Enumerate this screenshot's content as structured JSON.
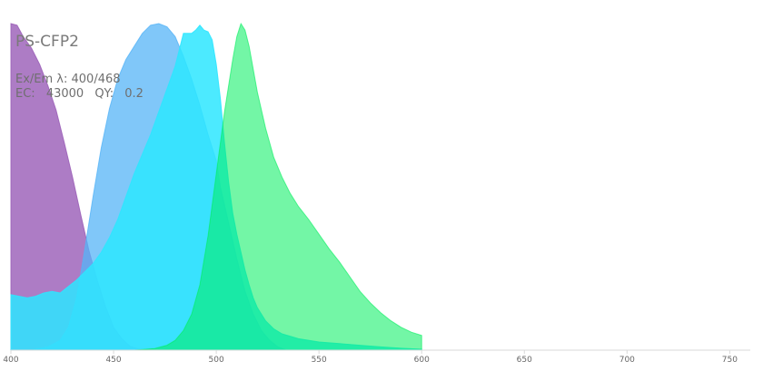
{
  "chart_data": {
    "type": "area",
    "title": "PS-CFP2",
    "info": {
      "exem_label": "Ex/Em λ:",
      "exem_value": "400/468",
      "ec_label": "EC:",
      "ec_value": "43000",
      "qy_label": "QY:",
      "qy_value": "0.2"
    },
    "xlim": [
      400,
      760
    ],
    "ylim": [
      0,
      1
    ],
    "x_ticks": [
      400,
      450,
      500,
      550,
      600,
      650,
      700,
      750
    ],
    "x_tick_labels": [
      "400",
      "450",
      "500",
      "550",
      "600",
      "650",
      "700",
      "750"
    ],
    "grid": false,
    "series": [
      {
        "color": "#9b5fb8",
        "opacity": 0.82,
        "points": [
          [
            400,
            1.0
          ],
          [
            403,
            0.995
          ],
          [
            406,
            0.96
          ],
          [
            410,
            0.925
          ],
          [
            414,
            0.875
          ],
          [
            418,
            0.81
          ],
          [
            422,
            0.735
          ],
          [
            426,
            0.635
          ],
          [
            430,
            0.53
          ],
          [
            434,
            0.415
          ],
          [
            438,
            0.305
          ],
          [
            442,
            0.215
          ],
          [
            446,
            0.135
          ],
          [
            450,
            0.07
          ],
          [
            454,
            0.035
          ],
          [
            458,
            0.012
          ],
          [
            462,
            0.004
          ],
          [
            466,
            0.0
          ]
        ]
      },
      {
        "color": "#56b4f7",
        "opacity": 0.75,
        "points": [
          [
            400,
            0.0
          ],
          [
            410,
            0.0
          ],
          [
            418,
            0.01
          ],
          [
            424,
            0.03
          ],
          [
            428,
            0.07
          ],
          [
            432,
            0.16
          ],
          [
            436,
            0.31
          ],
          [
            440,
            0.47
          ],
          [
            444,
            0.62
          ],
          [
            448,
            0.74
          ],
          [
            452,
            0.83
          ],
          [
            456,
            0.89
          ],
          [
            460,
            0.93
          ],
          [
            464,
            0.97
          ],
          [
            468,
            0.995
          ],
          [
            472,
            1.0
          ],
          [
            476,
            0.99
          ],
          [
            480,
            0.96
          ],
          [
            484,
            0.9
          ],
          [
            488,
            0.83
          ],
          [
            492,
            0.75
          ],
          [
            496,
            0.66
          ],
          [
            500,
            0.58
          ],
          [
            502,
            0.5
          ],
          [
            506,
            0.39
          ],
          [
            510,
            0.28
          ],
          [
            514,
            0.18
          ],
          [
            518,
            0.11
          ],
          [
            522,
            0.06
          ],
          [
            526,
            0.03
          ],
          [
            530,
            0.01
          ],
          [
            534,
            0.0
          ]
        ]
      },
      {
        "color": "#2de6ff",
        "opacity": 0.85,
        "points": [
          [
            400,
            0.17
          ],
          [
            404,
            0.165
          ],
          [
            408,
            0.16
          ],
          [
            412,
            0.165
          ],
          [
            416,
            0.175
          ],
          [
            420,
            0.18
          ],
          [
            424,
            0.175
          ],
          [
            428,
            0.195
          ],
          [
            432,
            0.215
          ],
          [
            436,
            0.24
          ],
          [
            440,
            0.265
          ],
          [
            444,
            0.3
          ],
          [
            448,
            0.345
          ],
          [
            452,
            0.4
          ],
          [
            456,
            0.47
          ],
          [
            460,
            0.54
          ],
          [
            464,
            0.6
          ],
          [
            468,
            0.66
          ],
          [
            472,
            0.73
          ],
          [
            476,
            0.8
          ],
          [
            480,
            0.87
          ],
          [
            484,
            0.97
          ],
          [
            488,
            0.97
          ],
          [
            490,
            0.98
          ],
          [
            492,
            0.995
          ],
          [
            494,
            0.98
          ],
          [
            496,
            0.975
          ],
          [
            498,
            0.95
          ],
          [
            500,
            0.875
          ],
          [
            502,
            0.77
          ],
          [
            504,
            0.635
          ],
          [
            506,
            0.515
          ],
          [
            508,
            0.42
          ],
          [
            510,
            0.355
          ],
          [
            512,
            0.3
          ],
          [
            514,
            0.245
          ],
          [
            516,
            0.2
          ],
          [
            518,
            0.16
          ],
          [
            520,
            0.13
          ],
          [
            524,
            0.09
          ],
          [
            528,
            0.065
          ],
          [
            532,
            0.05
          ],
          [
            540,
            0.035
          ],
          [
            550,
            0.025
          ],
          [
            560,
            0.02
          ],
          [
            570,
            0.015
          ],
          [
            580,
            0.01
          ],
          [
            590,
            0.006
          ],
          [
            600,
            0.003
          ]
        ]
      },
      {
        "color": "#00ef5c",
        "opacity": 0.55,
        "points": [
          [
            460,
            0.0
          ],
          [
            470,
            0.005
          ],
          [
            476,
            0.015
          ],
          [
            480,
            0.03
          ],
          [
            484,
            0.06
          ],
          [
            488,
            0.11
          ],
          [
            492,
            0.2
          ],
          [
            496,
            0.35
          ],
          [
            500,
            0.54
          ],
          [
            504,
            0.73
          ],
          [
            508,
            0.89
          ],
          [
            510,
            0.96
          ],
          [
            512,
            1.0
          ],
          [
            514,
            0.98
          ],
          [
            516,
            0.93
          ],
          [
            518,
            0.86
          ],
          [
            520,
            0.79
          ],
          [
            524,
            0.68
          ],
          [
            528,
            0.59
          ],
          [
            532,
            0.53
          ],
          [
            536,
            0.48
          ],
          [
            540,
            0.44
          ],
          [
            545,
            0.4
          ],
          [
            550,
            0.355
          ],
          [
            555,
            0.31
          ],
          [
            560,
            0.27
          ],
          [
            565,
            0.225
          ],
          [
            570,
            0.18
          ],
          [
            575,
            0.145
          ],
          [
            580,
            0.115
          ],
          [
            585,
            0.09
          ],
          [
            590,
            0.07
          ],
          [
            595,
            0.055
          ],
          [
            600,
            0.045
          ]
        ]
      }
    ]
  }
}
